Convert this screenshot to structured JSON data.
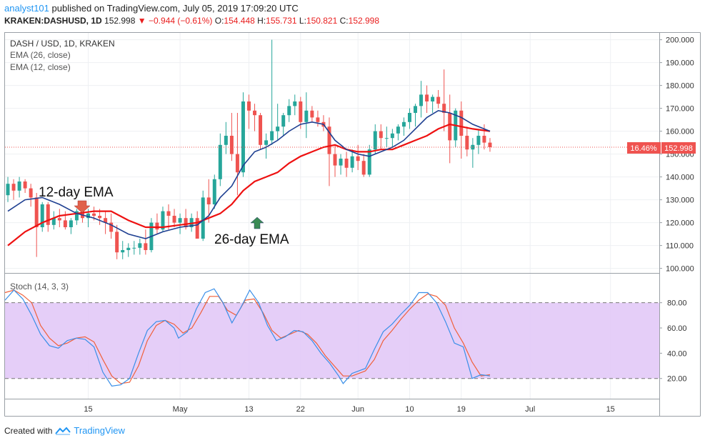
{
  "header": {
    "author": "analyst101",
    "published_text": "published on TradingView.com, July 05, 2019 17:09:20 UTC",
    "symbol": "KRAKEN:DASHUSD, 1D",
    "last": "152.998",
    "arrow": "▼",
    "change": "−0.944 (−0.61%)",
    "o_label": "O:",
    "o": "154.448",
    "h_label": "H:",
    "h": "155.731",
    "l_label": "L:",
    "l": "150.821",
    "c_label": "C:",
    "c": "152.998"
  },
  "legend": {
    "pair": "DASH / USD, 1D, KRAKEN",
    "ema26": "EMA (26, close)",
    "ema12": "EMA (12, close)",
    "stoch": "Stoch (14, 3, 3)"
  },
  "annotations": {
    "ema12": "12-day EMA",
    "ema26": "26-day EMA"
  },
  "price_badge": {
    "pct": "16.46%",
    "price": "152.998"
  },
  "footer": {
    "created_with": "Created with",
    "brand": "TradingView"
  },
  "colors": {
    "up": "#26a69a",
    "down": "#ef5350",
    "ema12": "#1e3f91",
    "ema26": "#ee1111",
    "stoch_k": "#3a8fe8",
    "stoch_d": "#f0603a",
    "band": "#e1c6f7",
    "badge": "#ef5350"
  },
  "chart_data": {
    "type": "candlestick",
    "title": "DASH / USD, 1D, KRAKEN",
    "price_ticks": [
      "200.000",
      "190.000",
      "180.000",
      "170.000",
      "160.000",
      "150.000",
      "140.000",
      "130.000",
      "120.000",
      "110.000",
      "100.000"
    ],
    "price_range": [
      98,
      203
    ],
    "x_ticks": [
      {
        "label": "15",
        "day": 14
      },
      {
        "label": "May",
        "day": 30
      },
      {
        "label": "13",
        "day": 42
      },
      {
        "label": "22",
        "day": 51
      },
      {
        "label": "Jun",
        "day": 61
      },
      {
        "label": "10",
        "day": 70
      },
      {
        "label": "19",
        "day": 79
      },
      {
        "label": "Jul",
        "day": 91
      },
      {
        "label": "15",
        "day": 105
      }
    ],
    "candles": [
      [
        0,
        132,
        140,
        129,
        137
      ],
      [
        1,
        137,
        139,
        130,
        134
      ],
      [
        2,
        134,
        140,
        131,
        138
      ],
      [
        3,
        138,
        139,
        133,
        135
      ],
      [
        4,
        135,
        137,
        127,
        131
      ],
      [
        5,
        131,
        133,
        105,
        118
      ],
      [
        6,
        118,
        129,
        116,
        128
      ],
      [
        7,
        128,
        129,
        116,
        119
      ],
      [
        8,
        119,
        125,
        117,
        122
      ],
      [
        9,
        122,
        126,
        118,
        121
      ],
      [
        10,
        121,
        125,
        117,
        118
      ],
      [
        11,
        118,
        122,
        115,
        121
      ],
      [
        12,
        121,
        126,
        119,
        125
      ],
      [
        13,
        125,
        129,
        120,
        122
      ],
      [
        14,
        122,
        126,
        118,
        124
      ],
      [
        15,
        124,
        127,
        121,
        123
      ],
      [
        16,
        123,
        126,
        119,
        122
      ],
      [
        17,
        122,
        125,
        115,
        120
      ],
      [
        18,
        120,
        124,
        113,
        116
      ],
      [
        19,
        116,
        119,
        104,
        107
      ],
      [
        20,
        107,
        112,
        104,
        108
      ],
      [
        21,
        108,
        111,
        105,
        109
      ],
      [
        22,
        109,
        112,
        106,
        109
      ],
      [
        23,
        109,
        113,
        106,
        111
      ],
      [
        24,
        111,
        117,
        106,
        108
      ],
      [
        25,
        108,
        122,
        107,
        120
      ],
      [
        26,
        120,
        124,
        115,
        117
      ],
      [
        27,
        117,
        127,
        116,
        125
      ],
      [
        28,
        125,
        128,
        117,
        123
      ],
      [
        29,
        123,
        126,
        118,
        120
      ],
      [
        30,
        120,
        124,
        115,
        122
      ],
      [
        31,
        122,
        126,
        117,
        118
      ],
      [
        32,
        118,
        124,
        116,
        122
      ],
      [
        33,
        122,
        125,
        113,
        113
      ],
      [
        34,
        113,
        134,
        112,
        131
      ],
      [
        35,
        131,
        139,
        120,
        128
      ],
      [
        36,
        128,
        141,
        126,
        139
      ],
      [
        37,
        139,
        159,
        136,
        154
      ],
      [
        38,
        154,
        164,
        150,
        158
      ],
      [
        39,
        158,
        168,
        147,
        150
      ],
      [
        40,
        150,
        168,
        132,
        142
      ],
      [
        41,
        142,
        177,
        140,
        173
      ],
      [
        42,
        173,
        176,
        161,
        169
      ],
      [
        43,
        169,
        172,
        160,
        167
      ],
      [
        44,
        167,
        168,
        152,
        154
      ],
      [
        45,
        154,
        159,
        148,
        156
      ],
      [
        46,
        156,
        200,
        154,
        160
      ],
      [
        47,
        160,
        172,
        156,
        162
      ],
      [
        48,
        162,
        168,
        158,
        167
      ],
      [
        49,
        167,
        174,
        164,
        171
      ],
      [
        50,
        171,
        176,
        167,
        173
      ],
      [
        51,
        173,
        175,
        161,
        164
      ],
      [
        52,
        164,
        177,
        157,
        169
      ],
      [
        53,
        169,
        171,
        164,
        166
      ],
      [
        54,
        166,
        169,
        162,
        164
      ],
      [
        55,
        164,
        167,
        160,
        162
      ],
      [
        56,
        162,
        166,
        136,
        150
      ],
      [
        57,
        150,
        154,
        140,
        145
      ],
      [
        58,
        145,
        150,
        141,
        148
      ],
      [
        59,
        148,
        151,
        140,
        144
      ],
      [
        60,
        144,
        152,
        142,
        149
      ],
      [
        61,
        149,
        154,
        143,
        147
      ],
      [
        62,
        147,
        150,
        140,
        141
      ],
      [
        63,
        141,
        154,
        140,
        152
      ],
      [
        64,
        152,
        163,
        150,
        160
      ],
      [
        65,
        160,
        163,
        152,
        157
      ],
      [
        66,
        157,
        162,
        153,
        157
      ],
      [
        67,
        157,
        161,
        153,
        159
      ],
      [
        68,
        159,
        163,
        156,
        162
      ],
      [
        69,
        162,
        166,
        158,
        164
      ],
      [
        70,
        164,
        170,
        161,
        168
      ],
      [
        71,
        168,
        172,
        162,
        171
      ],
      [
        72,
        171,
        182,
        166,
        176
      ],
      [
        73,
        176,
        180,
        168,
        173
      ],
      [
        74,
        173,
        176,
        168,
        175
      ],
      [
        75,
        175,
        178,
        170,
        172
      ],
      [
        76,
        172,
        187,
        160,
        168
      ],
      [
        77,
        168,
        176,
        146,
        156
      ],
      [
        78,
        156,
        170,
        153,
        169
      ],
      [
        79,
        169,
        173,
        148,
        158
      ],
      [
        80,
        158,
        162,
        149,
        152
      ],
      [
        81,
        152,
        157,
        144,
        154
      ],
      [
        82,
        154,
        161,
        150,
        158
      ],
      [
        83,
        158,
        163,
        152,
        155
      ],
      [
        84,
        155,
        157,
        151,
        153
      ]
    ],
    "ema12": [
      [
        0,
        125
      ],
      [
        3,
        130
      ],
      [
        6,
        131
      ],
      [
        9,
        128
      ],
      [
        12,
        124
      ],
      [
        15,
        122
      ],
      [
        18,
        119
      ],
      [
        21,
        115
      ],
      [
        24,
        113
      ],
      [
        27,
        116
      ],
      [
        30,
        118
      ],
      [
        33,
        119
      ],
      [
        35,
        123
      ],
      [
        37,
        131
      ],
      [
        39,
        136
      ],
      [
        41,
        145
      ],
      [
        43,
        151
      ],
      [
        45,
        153
      ],
      [
        47,
        156
      ],
      [
        49,
        160
      ],
      [
        51,
        163
      ],
      [
        53,
        164
      ],
      [
        55,
        163
      ],
      [
        57,
        156
      ],
      [
        59,
        152
      ],
      [
        61,
        150
      ],
      [
        63,
        149
      ],
      [
        65,
        151
      ],
      [
        67,
        153
      ],
      [
        69,
        156
      ],
      [
        71,
        161
      ],
      [
        73,
        166
      ],
      [
        75,
        169
      ],
      [
        77,
        168
      ],
      [
        79,
        166
      ],
      [
        81,
        163
      ],
      [
        84,
        160
      ]
    ],
    "ema26": [
      [
        0,
        110
      ],
      [
        3,
        116
      ],
      [
        6,
        120
      ],
      [
        9,
        123
      ],
      [
        12,
        124
      ],
      [
        15,
        125
      ],
      [
        18,
        125
      ],
      [
        21,
        121
      ],
      [
        24,
        118
      ],
      [
        27,
        118
      ],
      [
        30,
        119
      ],
      [
        33,
        120
      ],
      [
        35,
        122
      ],
      [
        37,
        124
      ],
      [
        39,
        128
      ],
      [
        41,
        134
      ],
      [
        43,
        138
      ],
      [
        45,
        140
      ],
      [
        47,
        142
      ],
      [
        49,
        146
      ],
      [
        51,
        149
      ],
      [
        53,
        151
      ],
      [
        55,
        153
      ],
      [
        57,
        154
      ],
      [
        59,
        152
      ],
      [
        61,
        151
      ],
      [
        63,
        151
      ],
      [
        65,
        152
      ],
      [
        67,
        152
      ],
      [
        69,
        154
      ],
      [
        71,
        156
      ],
      [
        73,
        158
      ],
      [
        75,
        161
      ],
      [
        77,
        163
      ],
      [
        79,
        162
      ],
      [
        81,
        161
      ],
      [
        84,
        160
      ]
    ],
    "stoch_ticks": [
      "80.00",
      "60.00",
      "40.00",
      "20.00"
    ],
    "stoch_range": [
      4,
      103
    ],
    "stoch_bands": [
      20,
      80
    ],
    "stoch_k": [
      [
        0,
        82
      ],
      [
        2,
        90
      ],
      [
        4,
        83
      ],
      [
        6,
        70
      ],
      [
        8,
        55
      ],
      [
        10,
        46
      ],
      [
        12,
        44
      ],
      [
        14,
        50
      ],
      [
        16,
        52
      ],
      [
        18,
        51
      ],
      [
        20,
        45
      ],
      [
        22,
        25
      ],
      [
        24,
        14
      ],
      [
        26,
        15
      ],
      [
        28,
        20
      ],
      [
        30,
        40
      ],
      [
        32,
        58
      ],
      [
        34,
        65
      ],
      [
        36,
        66
      ],
      [
        38,
        60
      ],
      [
        39,
        52
      ],
      [
        41,
        57
      ],
      [
        43,
        75
      ],
      [
        45,
        88
      ],
      [
        47,
        91
      ],
      [
        49,
        80
      ],
      [
        51,
        64
      ],
      [
        53,
        76
      ],
      [
        55,
        90
      ],
      [
        57,
        80
      ],
      [
        59,
        62
      ],
      [
        61,
        50
      ],
      [
        63,
        53
      ],
      [
        65,
        58
      ],
      [
        67,
        57
      ],
      [
        69,
        50
      ],
      [
        71,
        40
      ],
      [
        73,
        32
      ],
      [
        75,
        22
      ],
      [
        76,
        16
      ],
      [
        78,
        24
      ],
      [
        81,
        28
      ],
      [
        83,
        43
      ],
      [
        85,
        57
      ],
      [
        87,
        63
      ],
      [
        89,
        71
      ],
      [
        91,
        78
      ],
      [
        93,
        88
      ],
      [
        95,
        88
      ],
      [
        97,
        80
      ],
      [
        99,
        65
      ],
      [
        101,
        48
      ],
      [
        103,
        45
      ],
      [
        105,
        20
      ],
      [
        107,
        23
      ],
      [
        109,
        22
      ]
    ],
    "stoch_d": [
      [
        0,
        88
      ],
      [
        2,
        90
      ],
      [
        4,
        86
      ],
      [
        6,
        80
      ],
      [
        8,
        62
      ],
      [
        10,
        52
      ],
      [
        12,
        46
      ],
      [
        14,
        48
      ],
      [
        16,
        52
      ],
      [
        18,
        53
      ],
      [
        20,
        49
      ],
      [
        22,
        35
      ],
      [
        24,
        22
      ],
      [
        26,
        16
      ],
      [
        28,
        17
      ],
      [
        30,
        30
      ],
      [
        32,
        50
      ],
      [
        34,
        62
      ],
      [
        36,
        66
      ],
      [
        38,
        63
      ],
      [
        40,
        56
      ],
      [
        42,
        60
      ],
      [
        44,
        72
      ],
      [
        46,
        85
      ],
      [
        48,
        85
      ],
      [
        50,
        74
      ],
      [
        52,
        70
      ],
      [
        54,
        82
      ],
      [
        56,
        83
      ],
      [
        58,
        72
      ],
      [
        60,
        58
      ],
      [
        62,
        52
      ],
      [
        64,
        55
      ],
      [
        66,
        58
      ],
      [
        68,
        55
      ],
      [
        70,
        48
      ],
      [
        72,
        38
      ],
      [
        74,
        30
      ],
      [
        76,
        22
      ],
      [
        78,
        22
      ],
      [
        81,
        26
      ],
      [
        83,
        35
      ],
      [
        85,
        50
      ],
      [
        87,
        58
      ],
      [
        89,
        67
      ],
      [
        91,
        75
      ],
      [
        93,
        82
      ],
      [
        95,
        87
      ],
      [
        97,
        85
      ],
      [
        99,
        78
      ],
      [
        101,
        60
      ],
      [
        103,
        48
      ],
      [
        105,
        33
      ],
      [
        107,
        22
      ],
      [
        109,
        23
      ]
    ]
  }
}
